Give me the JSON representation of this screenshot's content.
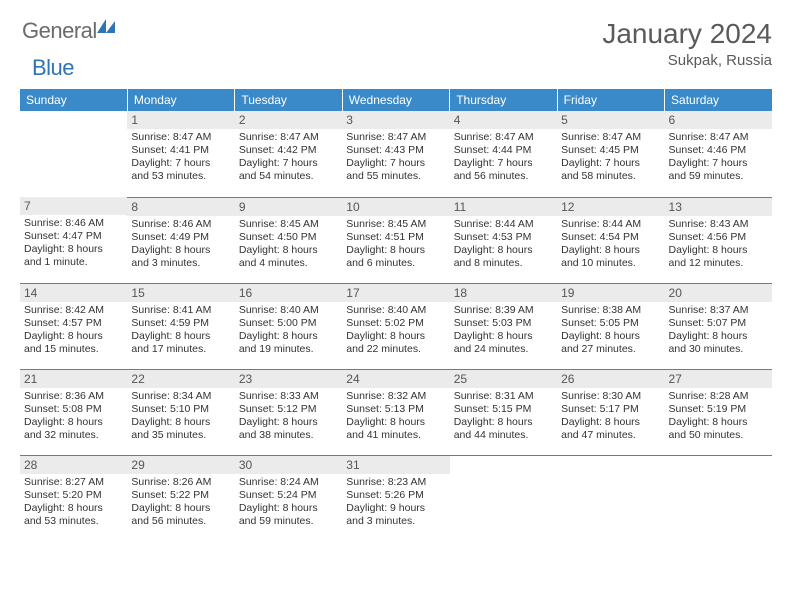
{
  "brand": {
    "general": "General",
    "blue": "Blue"
  },
  "title": "January 2024",
  "location": "Sukpak, Russia",
  "colors": {
    "header_bg": "#3a8ac9",
    "header_fg": "#ffffff",
    "daynum_bg": "#ebebeb",
    "text": "#333333",
    "rule": "#3a8ac9",
    "logo_blue": "#2f75b5",
    "logo_gray": "#6b6b6b"
  },
  "dow": [
    "Sunday",
    "Monday",
    "Tuesday",
    "Wednesday",
    "Thursday",
    "Friday",
    "Saturday"
  ],
  "weeks": [
    [
      null,
      {
        "n": "1",
        "sr": "Sunrise: 8:47 AM",
        "ss": "Sunset: 4:41 PM",
        "d1": "Daylight: 7 hours",
        "d2": "and 53 minutes."
      },
      {
        "n": "2",
        "sr": "Sunrise: 8:47 AM",
        "ss": "Sunset: 4:42 PM",
        "d1": "Daylight: 7 hours",
        "d2": "and 54 minutes."
      },
      {
        "n": "3",
        "sr": "Sunrise: 8:47 AM",
        "ss": "Sunset: 4:43 PM",
        "d1": "Daylight: 7 hours",
        "d2": "and 55 minutes."
      },
      {
        "n": "4",
        "sr": "Sunrise: 8:47 AM",
        "ss": "Sunset: 4:44 PM",
        "d1": "Daylight: 7 hours",
        "d2": "and 56 minutes."
      },
      {
        "n": "5",
        "sr": "Sunrise: 8:47 AM",
        "ss": "Sunset: 4:45 PM",
        "d1": "Daylight: 7 hours",
        "d2": "and 58 minutes."
      },
      {
        "n": "6",
        "sr": "Sunrise: 8:47 AM",
        "ss": "Sunset: 4:46 PM",
        "d1": "Daylight: 7 hours",
        "d2": "and 59 minutes."
      }
    ],
    [
      {
        "n": "7",
        "sr": "Sunrise: 8:46 AM",
        "ss": "Sunset: 4:47 PM",
        "d1": "Daylight: 8 hours",
        "d2": "and 1 minute."
      },
      {
        "n": "8",
        "sr": "Sunrise: 8:46 AM",
        "ss": "Sunset: 4:49 PM",
        "d1": "Daylight: 8 hours",
        "d2": "and 3 minutes."
      },
      {
        "n": "9",
        "sr": "Sunrise: 8:45 AM",
        "ss": "Sunset: 4:50 PM",
        "d1": "Daylight: 8 hours",
        "d2": "and 4 minutes."
      },
      {
        "n": "10",
        "sr": "Sunrise: 8:45 AM",
        "ss": "Sunset: 4:51 PM",
        "d1": "Daylight: 8 hours",
        "d2": "and 6 minutes."
      },
      {
        "n": "11",
        "sr": "Sunrise: 8:44 AM",
        "ss": "Sunset: 4:53 PM",
        "d1": "Daylight: 8 hours",
        "d2": "and 8 minutes."
      },
      {
        "n": "12",
        "sr": "Sunrise: 8:44 AM",
        "ss": "Sunset: 4:54 PM",
        "d1": "Daylight: 8 hours",
        "d2": "and 10 minutes."
      },
      {
        "n": "13",
        "sr": "Sunrise: 8:43 AM",
        "ss": "Sunset: 4:56 PM",
        "d1": "Daylight: 8 hours",
        "d2": "and 12 minutes."
      }
    ],
    [
      {
        "n": "14",
        "sr": "Sunrise: 8:42 AM",
        "ss": "Sunset: 4:57 PM",
        "d1": "Daylight: 8 hours",
        "d2": "and 15 minutes."
      },
      {
        "n": "15",
        "sr": "Sunrise: 8:41 AM",
        "ss": "Sunset: 4:59 PM",
        "d1": "Daylight: 8 hours",
        "d2": "and 17 minutes."
      },
      {
        "n": "16",
        "sr": "Sunrise: 8:40 AM",
        "ss": "Sunset: 5:00 PM",
        "d1": "Daylight: 8 hours",
        "d2": "and 19 minutes."
      },
      {
        "n": "17",
        "sr": "Sunrise: 8:40 AM",
        "ss": "Sunset: 5:02 PM",
        "d1": "Daylight: 8 hours",
        "d2": "and 22 minutes."
      },
      {
        "n": "18",
        "sr": "Sunrise: 8:39 AM",
        "ss": "Sunset: 5:03 PM",
        "d1": "Daylight: 8 hours",
        "d2": "and 24 minutes."
      },
      {
        "n": "19",
        "sr": "Sunrise: 8:38 AM",
        "ss": "Sunset: 5:05 PM",
        "d1": "Daylight: 8 hours",
        "d2": "and 27 minutes."
      },
      {
        "n": "20",
        "sr": "Sunrise: 8:37 AM",
        "ss": "Sunset: 5:07 PM",
        "d1": "Daylight: 8 hours",
        "d2": "and 30 minutes."
      }
    ],
    [
      {
        "n": "21",
        "sr": "Sunrise: 8:36 AM",
        "ss": "Sunset: 5:08 PM",
        "d1": "Daylight: 8 hours",
        "d2": "and 32 minutes."
      },
      {
        "n": "22",
        "sr": "Sunrise: 8:34 AM",
        "ss": "Sunset: 5:10 PM",
        "d1": "Daylight: 8 hours",
        "d2": "and 35 minutes."
      },
      {
        "n": "23",
        "sr": "Sunrise: 8:33 AM",
        "ss": "Sunset: 5:12 PM",
        "d1": "Daylight: 8 hours",
        "d2": "and 38 minutes."
      },
      {
        "n": "24",
        "sr": "Sunrise: 8:32 AM",
        "ss": "Sunset: 5:13 PM",
        "d1": "Daylight: 8 hours",
        "d2": "and 41 minutes."
      },
      {
        "n": "25",
        "sr": "Sunrise: 8:31 AM",
        "ss": "Sunset: 5:15 PM",
        "d1": "Daylight: 8 hours",
        "d2": "and 44 minutes."
      },
      {
        "n": "26",
        "sr": "Sunrise: 8:30 AM",
        "ss": "Sunset: 5:17 PM",
        "d1": "Daylight: 8 hours",
        "d2": "and 47 minutes."
      },
      {
        "n": "27",
        "sr": "Sunrise: 8:28 AM",
        "ss": "Sunset: 5:19 PM",
        "d1": "Daylight: 8 hours",
        "d2": "and 50 minutes."
      }
    ],
    [
      {
        "n": "28",
        "sr": "Sunrise: 8:27 AM",
        "ss": "Sunset: 5:20 PM",
        "d1": "Daylight: 8 hours",
        "d2": "and 53 minutes."
      },
      {
        "n": "29",
        "sr": "Sunrise: 8:26 AM",
        "ss": "Sunset: 5:22 PM",
        "d1": "Daylight: 8 hours",
        "d2": "and 56 minutes."
      },
      {
        "n": "30",
        "sr": "Sunrise: 8:24 AM",
        "ss": "Sunset: 5:24 PM",
        "d1": "Daylight: 8 hours",
        "d2": "and 59 minutes."
      },
      {
        "n": "31",
        "sr": "Sunrise: 8:23 AM",
        "ss": "Sunset: 5:26 PM",
        "d1": "Daylight: 9 hours",
        "d2": "and 3 minutes."
      },
      null,
      null,
      null
    ]
  ]
}
